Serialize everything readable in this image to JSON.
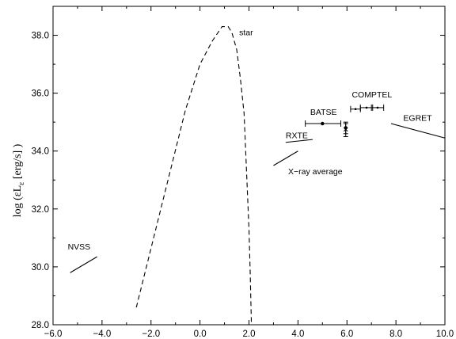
{
  "chart_data": {
    "type": "line",
    "title": "",
    "xlabel": "",
    "ylabel": {
      "prefix": "log (εL",
      "sub": "ε",
      "suffix": " [erg/s] )"
    },
    "xlim": [
      -6.0,
      10.0
    ],
    "ylim": [
      28.0,
      39.0
    ],
    "x_ticks": [
      -6.0,
      -4.0,
      -2.0,
      0.0,
      2.0,
      4.0,
      6.0,
      8.0,
      10.0
    ],
    "x_tick_labels": [
      "−6.0",
      "−4.0",
      "−2.0",
      "0.0",
      "2.0",
      "4.0",
      "6.0",
      "8.0",
      "10.0"
    ],
    "y_ticks": [
      28.0,
      30.0,
      32.0,
      34.0,
      36.0,
      38.0
    ],
    "y_tick_labels": [
      "28.0",
      "30.0",
      "32.0",
      "34.0",
      "36.0",
      "38.0"
    ],
    "grid": false,
    "series": [
      {
        "name": "star",
        "style": "dashed",
        "points": [
          [
            -2.6,
            28.6
          ],
          [
            -1.6,
            32.0
          ],
          [
            -0.6,
            35.4
          ],
          [
            0.0,
            37.0
          ],
          [
            0.5,
            37.8
          ],
          [
            0.9,
            38.3
          ],
          [
            1.15,
            38.3
          ],
          [
            1.3,
            38.1
          ],
          [
            1.5,
            37.5
          ],
          [
            1.65,
            36.5
          ],
          [
            1.8,
            35.3
          ],
          [
            1.9,
            33.3
          ],
          [
            2.0,
            31.3
          ],
          [
            2.05,
            29.8
          ],
          [
            2.1,
            28.0
          ]
        ]
      },
      {
        "name": "NVSS",
        "style": "solid",
        "points": [
          [
            -5.3,
            29.8
          ],
          [
            -4.2,
            30.35
          ]
        ]
      },
      {
        "name": "RXTE",
        "style": "solid",
        "points": [
          [
            3.5,
            34.3
          ],
          [
            4.6,
            34.4
          ]
        ]
      },
      {
        "name": "X-ray average",
        "style": "solid",
        "points": [
          [
            3.0,
            33.5
          ],
          [
            4.0,
            34.0
          ]
        ]
      },
      {
        "name": "EGRET",
        "style": "solid",
        "points": [
          [
            7.8,
            34.95
          ],
          [
            10.0,
            34.45
          ]
        ]
      }
    ],
    "error_points": [
      {
        "group": "BATSE",
        "x": 5.0,
        "y": 34.95,
        "xerr": [
          4.3,
          5.75
        ],
        "marker": "filled"
      },
      {
        "group": "BATSE",
        "x": 5.95,
        "y": 34.8,
        "xerr": [
          5.95,
          5.95
        ],
        "yerr": [
          34.6,
          35.0
        ],
        "marker": "filled"
      },
      {
        "group": "BATSE",
        "x": 5.95,
        "y": 34.75,
        "xerr": [
          5.95,
          5.95
        ],
        "yerr": [
          34.5,
          34.95
        ],
        "marker": "cross"
      },
      {
        "group": "COMPTEL",
        "x": 6.35,
        "y": 35.45,
        "xerr": [
          6.15,
          6.55
        ],
        "marker": "dot"
      },
      {
        "group": "COMPTEL",
        "x": 6.8,
        "y": 35.5,
        "xerr": [
          6.55,
          7.05
        ],
        "marker": "dot"
      },
      {
        "group": "COMPTEL",
        "x": 7.25,
        "y": 35.5,
        "xerr": [
          7.0,
          7.5
        ],
        "marker": "dot"
      }
    ],
    "annotations": [
      {
        "text": "star",
        "x": 1.6,
        "y": 38.0
      },
      {
        "text": "NVSS",
        "x": -5.4,
        "y": 30.6
      },
      {
        "text": "RXTE",
        "x": 3.5,
        "y": 34.45
      },
      {
        "text": "X−ray average",
        "x": 3.6,
        "y": 33.2
      },
      {
        "text": "BATSE",
        "x": 4.5,
        "y": 35.25
      },
      {
        "text": "COMPTEL",
        "x": 6.2,
        "y": 35.85
      },
      {
        "text": "EGRET",
        "x": 8.3,
        "y": 35.05
      }
    ]
  }
}
